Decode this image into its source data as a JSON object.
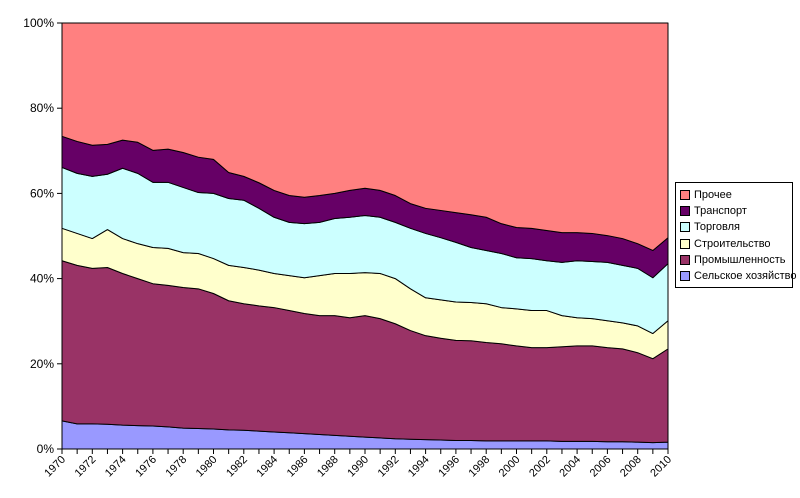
{
  "chart_data": {
    "type": "area",
    "stacked": true,
    "percent": true,
    "title": "",
    "xlabel": "",
    "ylabel": "",
    "ylim": [
      0,
      100
    ],
    "grid": false,
    "legend_position": "right",
    "legend_order_top_to_bottom": [
      "Прочее",
      "Транспорт",
      "Торговля",
      "Строительство",
      "Промышленность",
      "Сельское хозяйство"
    ],
    "x": [
      1970,
      1971,
      1972,
      1973,
      1974,
      1975,
      1976,
      1977,
      1978,
      1979,
      1980,
      1981,
      1982,
      1983,
      1984,
      1985,
      1986,
      1987,
      1988,
      1989,
      1990,
      1991,
      1992,
      1993,
      1994,
      1995,
      1996,
      1997,
      1998,
      1999,
      2000,
      2001,
      2002,
      2003,
      2004,
      2005,
      2006,
      2007,
      2008,
      2009,
      2010
    ],
    "x_label_step": 2,
    "y_ticks": [
      {
        "label": "0%",
        "value": 0
      },
      {
        "label": "20%",
        "value": 20
      },
      {
        "label": "40%",
        "value": 40
      },
      {
        "label": "60%",
        "value": 60
      },
      {
        "label": "80%",
        "value": 80
      },
      {
        "label": "100%",
        "value": 100
      }
    ],
    "series": [
      {
        "name": "Сельское хозяйство",
        "color": "#9999FF",
        "values": [
          6.6,
          5.9,
          5.9,
          5.8,
          5.6,
          5.5,
          5.4,
          5.2,
          4.9,
          4.8,
          4.7,
          4.5,
          4.4,
          4.2,
          4.0,
          3.8,
          3.6,
          3.4,
          3.2,
          3.0,
          2.8,
          2.6,
          2.4,
          2.3,
          2.2,
          2.1,
          2.0,
          2.0,
          1.9,
          1.9,
          1.9,
          1.9,
          1.9,
          1.8,
          1.8,
          1.8,
          1.7,
          1.7,
          1.6,
          1.5,
          1.6
        ]
      },
      {
        "name": "Промышленность",
        "color": "#993366",
        "values": [
          37.6,
          37.2,
          36.5,
          36.8,
          35.6,
          34.5,
          33.4,
          33.2,
          33.0,
          32.8,
          31.8,
          30.3,
          29.7,
          29.4,
          29.2,
          28.7,
          28.2,
          27.9,
          28.1,
          27.8,
          28.5,
          28.0,
          27.0,
          25.5,
          24.4,
          23.9,
          23.5,
          23.4,
          23.1,
          22.8,
          22.3,
          21.9,
          21.9,
          22.2,
          22.4,
          22.4,
          22.1,
          21.8,
          21.0,
          19.7,
          21.9
        ]
      },
      {
        "name": "Строительство",
        "color": "#FFFFCC",
        "values": [
          7.6,
          7.5,
          7.0,
          8.9,
          8.2,
          8.2,
          8.5,
          8.7,
          8.2,
          8.3,
          8.2,
          8.3,
          8.5,
          8.4,
          8.0,
          8.2,
          8.4,
          9.4,
          9.9,
          10.4,
          10.1,
          10.6,
          10.6,
          9.8,
          8.9,
          9.0,
          9.0,
          9.0,
          9.1,
          8.5,
          8.7,
          8.7,
          8.7,
          7.3,
          6.6,
          6.4,
          6.3,
          6.1,
          6.3,
          5.9,
          6.6
        ]
      },
      {
        "name": "Торговля",
        "color": "#CCFFFF",
        "values": [
          14.3,
          14.1,
          14.6,
          13.0,
          16.5,
          16.5,
          15.3,
          15.5,
          15.3,
          14.3,
          15.3,
          15.7,
          15.8,
          14.5,
          13.2,
          12.5,
          12.7,
          12.5,
          12.9,
          13.2,
          13.4,
          13.2,
          13.2,
          14.2,
          15.1,
          14.6,
          14.0,
          12.9,
          12.5,
          12.7,
          12.0,
          12.2,
          11.7,
          12.5,
          13.4,
          13.4,
          13.7,
          13.5,
          13.5,
          13.1,
          13.4
        ]
      },
      {
        "name": "Транспорт",
        "color": "#660066",
        "values": [
          7.3,
          7.5,
          7.3,
          7.0,
          6.6,
          7.3,
          7.5,
          7.8,
          8.2,
          8.3,
          8.0,
          6.1,
          5.6,
          6.0,
          6.3,
          6.3,
          6.2,
          6.3,
          5.9,
          6.3,
          6.4,
          6.3,
          6.3,
          5.8,
          5.9,
          6.4,
          7.0,
          7.7,
          7.8,
          7.0,
          7.1,
          7.1,
          7.1,
          7.0,
          6.6,
          6.6,
          6.3,
          6.3,
          5.8,
          6.4,
          6.1
        ]
      },
      {
        "name": "Прочее",
        "color": "#FF8080",
        "values": [
          26.6,
          27.8,
          28.7,
          28.5,
          27.5,
          28.0,
          29.9,
          29.6,
          30.4,
          31.5,
          32.0,
          35.1,
          36.0,
          37.5,
          39.3,
          40.5,
          40.9,
          40.5,
          40.0,
          39.3,
          38.8,
          39.3,
          40.5,
          42.4,
          43.5,
          44.0,
          44.5,
          45.0,
          45.6,
          47.1,
          48.0,
          48.2,
          48.7,
          49.2,
          49.2,
          49.4,
          49.9,
          50.6,
          51.8,
          53.4,
          50.4
        ]
      }
    ]
  },
  "layout_colors": {
    "axis": "#000000",
    "area_outline": "#000000",
    "background": "#FFFFFF",
    "legend_border": "#000000"
  }
}
